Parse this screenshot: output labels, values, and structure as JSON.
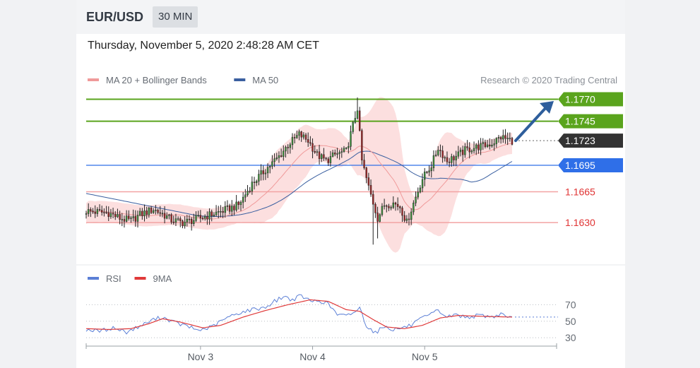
{
  "header": {
    "symbol": "EUR/USD",
    "interval": "30 MIN",
    "timestamp": "Thursday, November 5, 2020 2:48:28 AM CET"
  },
  "colors": {
    "ma20": "#f09a9a",
    "ma50": "#3a5fa0",
    "bollinger_fill": "#fbd9d9",
    "resistance": "#5aa41d",
    "support": "#f2a3a3",
    "support_text": "#e03434",
    "pivot": "#2f6fe8",
    "current_price": "#333333",
    "rsi": "#5b7fd6",
    "rsi_ma": "#e03a3a",
    "arrow": "#2e5e9c"
  },
  "chart_data": [
    {
      "type": "candlestick",
      "legend": [
        {
          "name": "MA 20 + Bollinger Bands",
          "color": "#f09a9a"
        },
        {
          "name": "MA 50",
          "color": "#3a5fa0"
        }
      ],
      "credit": "Research © 2020 Trading Central",
      "ylim": [
        1.159,
        1.178
      ],
      "levels": [
        {
          "label": "1.1770",
          "value": 1.177,
          "kind": "resistance"
        },
        {
          "label": "1.1745",
          "value": 1.1745,
          "kind": "resistance"
        },
        {
          "label": "1.1723",
          "value": 1.1723,
          "kind": "current"
        },
        {
          "label": "1.1695",
          "value": 1.1695,
          "kind": "pivot"
        },
        {
          "label": "1.1665",
          "value": 1.1665,
          "kind": "support"
        },
        {
          "label": "1.1630",
          "value": 1.163,
          "kind": "support"
        }
      ],
      "close_anchors": [
        [
          0,
          1.1643
        ],
        [
          10,
          1.1641
        ],
        [
          15,
          1.1635
        ],
        [
          20,
          1.1632
        ],
        [
          24,
          1.1639
        ],
        [
          30,
          1.1645
        ],
        [
          34,
          1.164
        ],
        [
          38,
          1.1633
        ],
        [
          43,
          1.163
        ],
        [
          48,
          1.1633
        ],
        [
          53,
          1.1637
        ],
        [
          58,
          1.1641
        ],
        [
          63,
          1.1645
        ],
        [
          68,
          1.165
        ],
        [
          74,
          1.1674
        ],
        [
          80,
          1.169
        ],
        [
          86,
          1.1705
        ],
        [
          90,
          1.1718
        ],
        [
          95,
          1.173
        ],
        [
          99,
          1.1723
        ],
        [
          103,
          1.1707
        ],
        [
          107,
          1.17
        ],
        [
          111,
          1.1707
        ],
        [
          116,
          1.1711
        ],
        [
          119,
          1.174
        ],
        [
          121,
          1.176
        ],
        [
          123,
          1.17
        ],
        [
          126,
          1.167
        ],
        [
          130,
          1.1635
        ],
        [
          133,
          1.165
        ],
        [
          137,
          1.1652
        ],
        [
          140,
          1.1648
        ],
        [
          143,
          1.163
        ],
        [
          146,
          1.1652
        ],
        [
          150,
          1.168
        ],
        [
          154,
          1.1695
        ],
        [
          157,
          1.1715
        ],
        [
          161,
          1.17
        ],
        [
          165,
          1.1705
        ],
        [
          169,
          1.1712
        ],
        [
          173,
          1.1715
        ],
        [
          177,
          1.1717
        ],
        [
          181,
          1.172
        ],
        [
          185,
          1.1727
        ],
        [
          190,
          1.1723
        ]
      ],
      "x_ticks": [
        {
          "label": "Nov 3",
          "index": 51
        },
        {
          "label": "Nov 4",
          "index": 101
        },
        {
          "label": "Nov 5",
          "index": 151
        }
      ]
    },
    {
      "type": "line",
      "legend": [
        {
          "name": "RSI",
          "color": "#5b7fd6"
        },
        {
          "name": "9MA",
          "color": "#e03a3a"
        }
      ],
      "ylim": [
        25,
        90
      ],
      "y_ticks": [
        30,
        50,
        70
      ],
      "rsi_anchors": [
        [
          0,
          40
        ],
        [
          6,
          38
        ],
        [
          12,
          42
        ],
        [
          18,
          37
        ],
        [
          24,
          44
        ],
        [
          30,
          52
        ],
        [
          34,
          55
        ],
        [
          40,
          48
        ],
        [
          46,
          43
        ],
        [
          50,
          39
        ],
        [
          56,
          43
        ],
        [
          62,
          53
        ],
        [
          68,
          60
        ],
        [
          74,
          64
        ],
        [
          80,
          67
        ],
        [
          84,
          74
        ],
        [
          88,
          80
        ],
        [
          92,
          76
        ],
        [
          96,
          81
        ],
        [
          100,
          74
        ],
        [
          104,
          75
        ],
        [
          108,
          71
        ],
        [
          112,
          58
        ],
        [
          116,
          56
        ],
        [
          120,
          62
        ],
        [
          122,
          66
        ],
        [
          125,
          45
        ],
        [
          129,
          36
        ],
        [
          133,
          44
        ],
        [
          137,
          40
        ],
        [
          141,
          42
        ],
        [
          145,
          45
        ],
        [
          149,
          52
        ],
        [
          153,
          57
        ],
        [
          157,
          63
        ],
        [
          161,
          55
        ],
        [
          165,
          58
        ],
        [
          169,
          55
        ],
        [
          173,
          56
        ],
        [
          177,
          57
        ],
        [
          181,
          55
        ],
        [
          185,
          59
        ],
        [
          190,
          54
        ]
      ],
      "ma_anchors": [
        [
          0,
          41
        ],
        [
          10,
          40
        ],
        [
          20,
          41
        ],
        [
          28,
          47
        ],
        [
          34,
          53
        ],
        [
          42,
          49
        ],
        [
          52,
          42
        ],
        [
          60,
          45
        ],
        [
          70,
          55
        ],
        [
          80,
          63
        ],
        [
          90,
          70
        ],
        [
          100,
          76
        ],
        [
          108,
          74
        ],
        [
          116,
          64
        ],
        [
          122,
          62
        ],
        [
          128,
          52
        ],
        [
          134,
          43
        ],
        [
          142,
          41
        ],
        [
          150,
          45
        ],
        [
          158,
          54
        ],
        [
          166,
          57
        ],
        [
          176,
          56
        ],
        [
          190,
          55
        ]
      ]
    }
  ]
}
